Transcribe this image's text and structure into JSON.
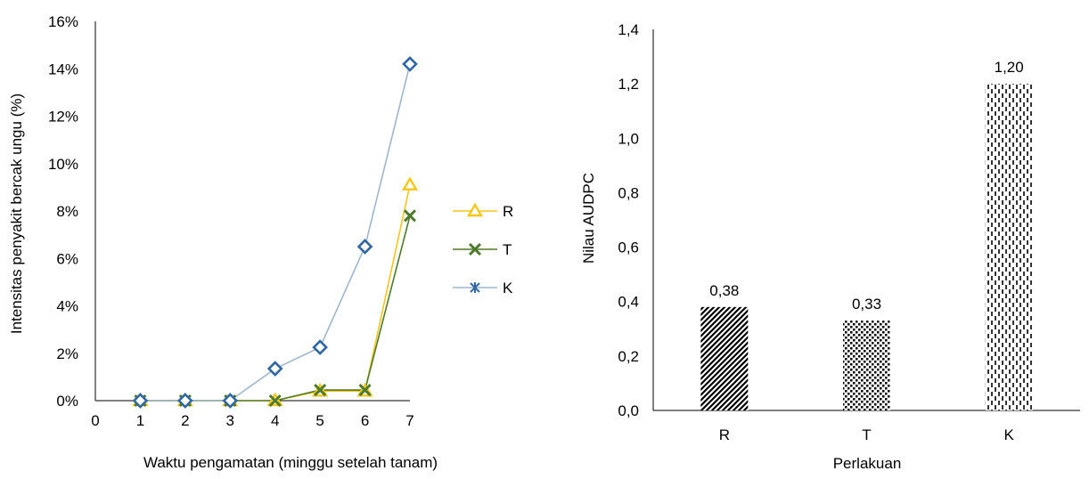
{
  "chart_data": [
    {
      "type": "line",
      "title": "",
      "xlabel": "Waktu pengamatan (minggu setelah tanam)",
      "ylabel": "Intensitas penyakit bercak ungu (%)",
      "xlim": [
        0,
        7
      ],
      "ylim": [
        0,
        16
      ],
      "x_ticks": [
        "0",
        "1",
        "2",
        "3",
        "4",
        "5",
        "6",
        "7"
      ],
      "y_ticks": [
        "0%",
        "2%",
        "4%",
        "6%",
        "8%",
        "10%",
        "12%",
        "14%",
        "16%"
      ],
      "grid": false,
      "legend_position": "right",
      "x": [
        1,
        2,
        3,
        4,
        5,
        6,
        7
      ],
      "series": [
        {
          "name": "R",
          "color": "#f5c518",
          "marker": "triangle",
          "values": [
            0,
            0,
            0,
            0,
            0.4,
            0.4,
            9.1
          ]
        },
        {
          "name": "T",
          "color": "#4e7a2c",
          "marker": "cross",
          "values": [
            0,
            0,
            0,
            0,
            0.45,
            0.45,
            7.8
          ]
        },
        {
          "name": "K",
          "color": "#2f66a6",
          "line_color": "#9fb6cf",
          "marker": "diamond",
          "values": [
            0,
            0,
            0,
            1.35,
            2.25,
            6.5,
            14.2
          ]
        }
      ]
    },
    {
      "type": "bar",
      "title": "",
      "xlabel": "Perlakuan",
      "ylabel": "Nilau AUDPC",
      "ylim": [
        0,
        1.4
      ],
      "y_ticks": [
        "0,0",
        "0,2",
        "0,4",
        "0,6",
        "0,8",
        "1,0",
        "1,2",
        "1,4"
      ],
      "grid": false,
      "categories": [
        "R",
        "T",
        "K"
      ],
      "values": [
        0.38,
        0.33,
        1.2
      ],
      "data_labels": [
        "0,38",
        "0,33",
        "1,20"
      ],
      "patterns": [
        "diagonal-stripes",
        "dots",
        "dashed-vertical"
      ]
    }
  ]
}
